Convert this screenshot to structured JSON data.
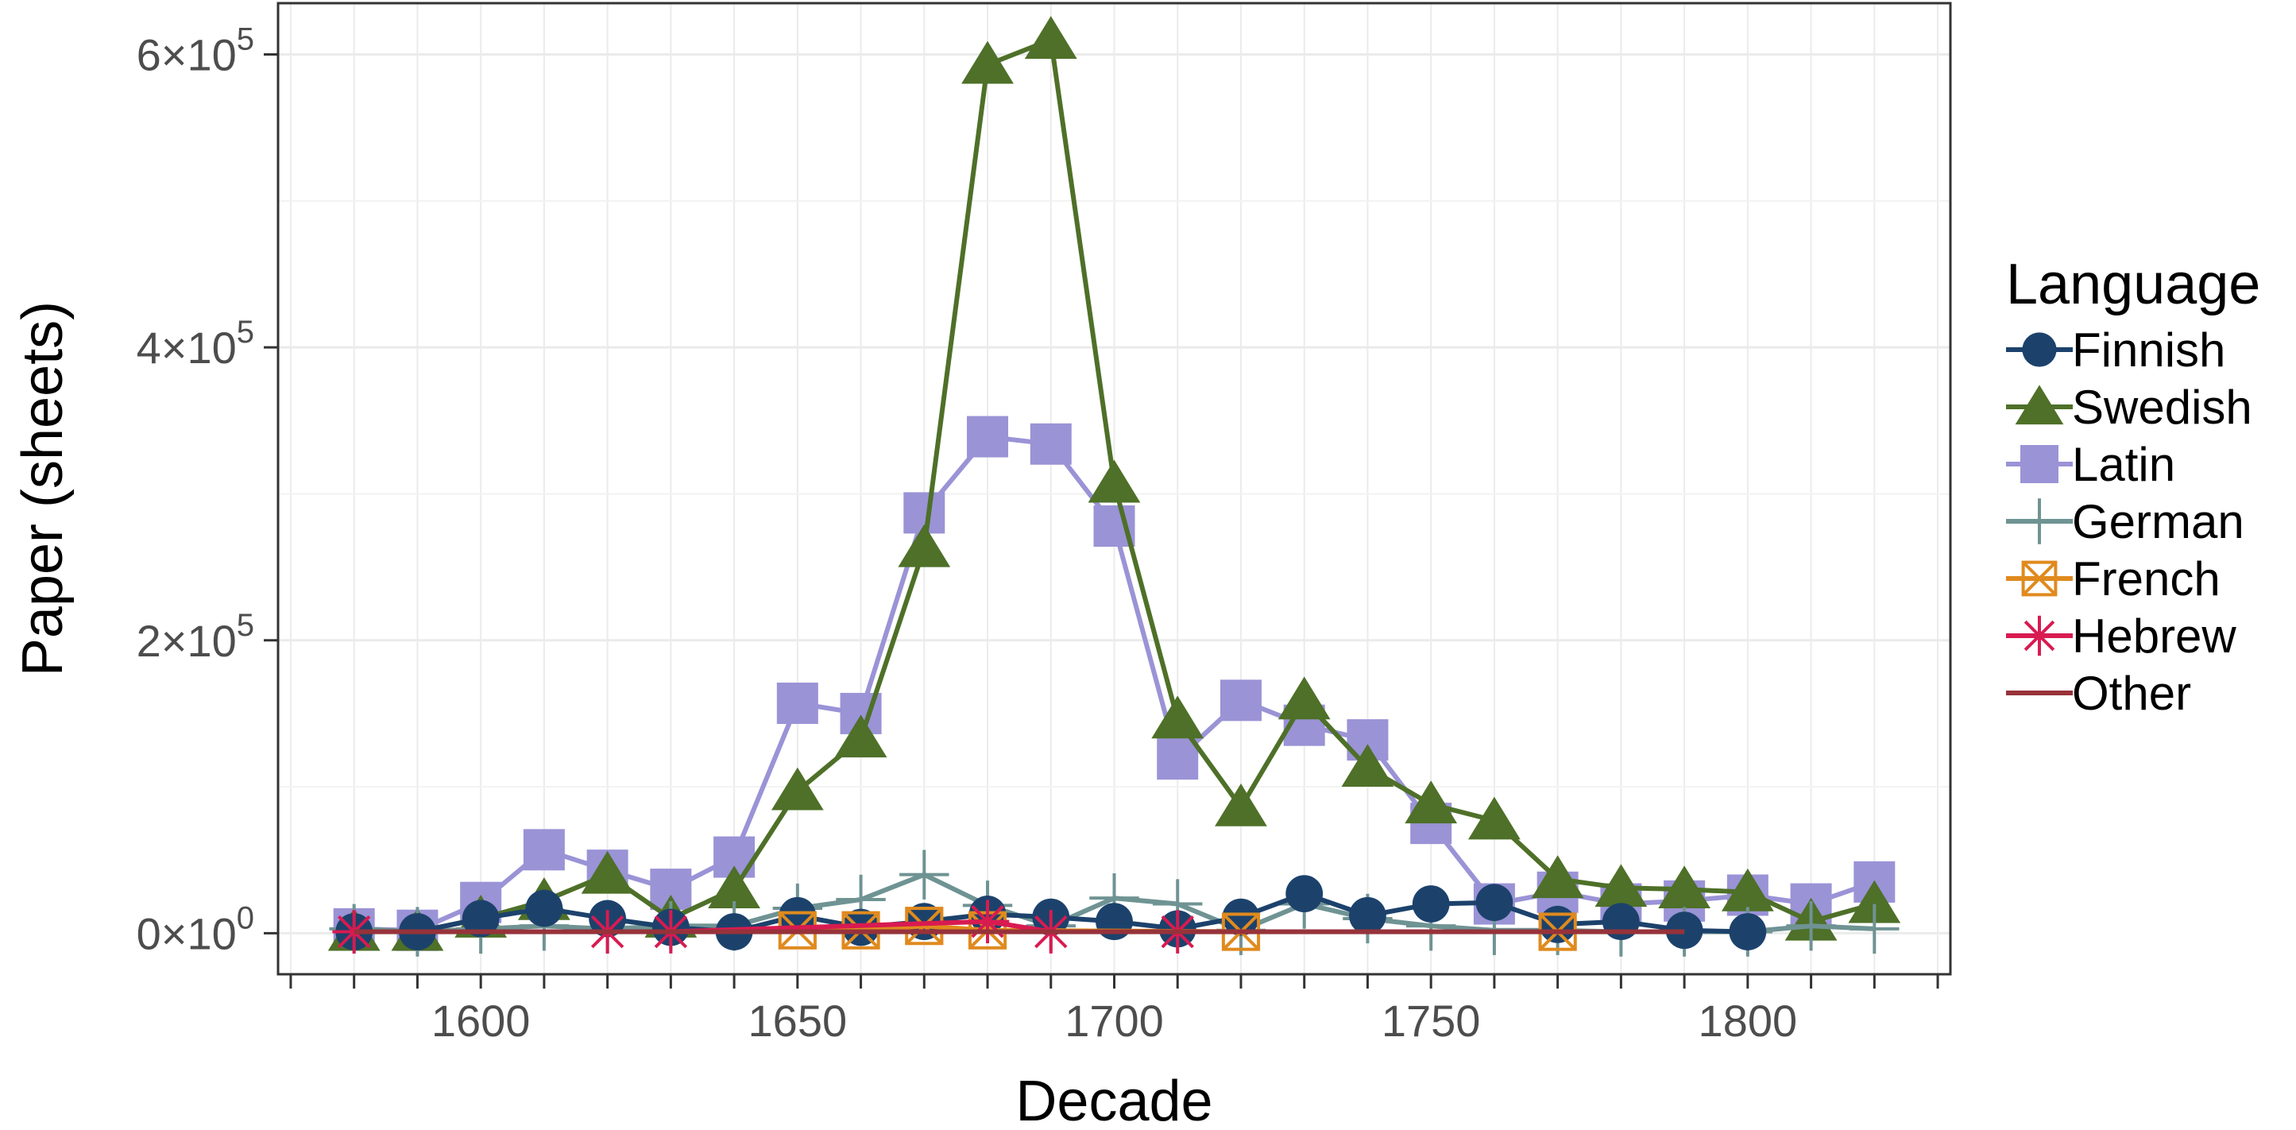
{
  "chart_data": {
    "type": "line",
    "title": "",
    "xlabel": "Decade",
    "ylabel": "Paper (sheets)",
    "xlim": [
      1568,
      1832
    ],
    "ylim": [
      -28000,
      635000
    ],
    "x_ticks": [
      1600,
      1650,
      1700,
      1750,
      1800
    ],
    "x_tick_labels": [
      "1600",
      "1650",
      "1700",
      "1750",
      "1800"
    ],
    "x_minor_every": 10,
    "y_ticks": [
      0,
      200000,
      400000,
      600000
    ],
    "y_tick_labels": [
      {
        "mantissa": "0",
        "times": "×",
        "base": "10",
        "exp": "0"
      },
      {
        "mantissa": "2",
        "times": "×",
        "base": "10",
        "exp": "5"
      },
      {
        "mantissa": "4",
        "times": "×",
        "base": "10",
        "exp": "5"
      },
      {
        "mantissa": "6",
        "times": "×",
        "base": "10",
        "exp": "5"
      }
    ],
    "grid": true,
    "legend_title": "Language",
    "legend_position": "right",
    "series": [
      {
        "name": "Latin",
        "color": "#9a93d6",
        "marker": "square",
        "x": [
          1580,
          1590,
          1600,
          1610,
          1620,
          1630,
          1640,
          1650,
          1660,
          1670,
          1680,
          1690,
          1700,
          1710,
          1720,
          1730,
          1740,
          1750,
          1760,
          1770,
          1780,
          1790,
          1800,
          1810,
          1820
        ],
        "y": [
          3000,
          2000,
          21000,
          57000,
          43000,
          30000,
          52000,
          157000,
          150000,
          287000,
          339000,
          334000,
          278000,
          119000,
          159000,
          142000,
          132000,
          75000,
          20000,
          28000,
          20000,
          22000,
          26000,
          20000,
          35000
        ]
      },
      {
        "name": "Swedish",
        "color": "#4e7028",
        "marker": "triangle",
        "x": [
          1580,
          1590,
          1600,
          1610,
          1620,
          1630,
          1640,
          1650,
          1660,
          1670,
          1680,
          1690,
          1700,
          1710,
          1720,
          1730,
          1740,
          1750,
          1760,
          1770,
          1780,
          1790,
          1800,
          1810,
          1820
        ],
        "y": [
          1000,
          1000,
          10000,
          22000,
          40000,
          10000,
          30000,
          97000,
          133000,
          263000,
          593000,
          610000,
          307000,
          146000,
          86000,
          159000,
          113000,
          88000,
          77000,
          37000,
          31000,
          30000,
          28000,
          8000,
          20000
        ]
      },
      {
        "name": "German",
        "color": "#6f9393",
        "marker": "plus",
        "x": [
          1580,
          1590,
          1600,
          1610,
          1620,
          1630,
          1640,
          1650,
          1660,
          1670,
          1680,
          1690,
          1700,
          1710,
          1720,
          1730,
          1740,
          1750,
          1760,
          1770,
          1780,
          1790,
          1800,
          1810,
          1820
        ],
        "y": [
          3000,
          1000,
          3000,
          5000,
          3000,
          5000,
          5000,
          17000,
          23000,
          40000,
          19000,
          5000,
          24000,
          20000,
          2000,
          20000,
          10000,
          5000,
          2000,
          2000,
          1000,
          1000,
          1000,
          5000,
          3000
        ]
      },
      {
        "name": "Finnish",
        "color": "#1c426c",
        "marker": "circle",
        "x": [
          1580,
          1590,
          1600,
          1610,
          1620,
          1630,
          1640,
          1650,
          1660,
          1670,
          1680,
          1690,
          1700,
          1710,
          1720,
          1730,
          1740,
          1750,
          1760,
          1770,
          1780,
          1790,
          1800
        ],
        "y": [
          1000,
          1000,
          10000,
          17000,
          10000,
          4000,
          1000,
          12000,
          4000,
          8000,
          13000,
          11000,
          8000,
          3000,
          11000,
          27000,
          12000,
          20000,
          21000,
          6000,
          8000,
          2000,
          1000
        ]
      },
      {
        "name": "French",
        "color": "#e08a1e",
        "marker": "squarex",
        "x": [
          1650,
          1660,
          1670,
          1680,
          1720,
          1770
        ],
        "y": [
          2000,
          2000,
          5000,
          2000,
          1000,
          1000
        ]
      },
      {
        "name": "Hebrew",
        "color": "#d81b51",
        "marker": "star",
        "x": [
          1580,
          1620,
          1630,
          1680,
          1690,
          1710
        ],
        "y": [
          1000,
          1000,
          1000,
          8000,
          1000,
          1000
        ]
      },
      {
        "name": "Other",
        "color": "#97323a",
        "marker": "none",
        "x": [
          1580,
          1600,
          1620,
          1640,
          1660,
          1680,
          1700,
          1720,
          1740,
          1760,
          1780,
          1790
        ],
        "y": [
          1000,
          1000,
          1000,
          1000,
          1000,
          1000,
          1000,
          1000,
          1000,
          1000,
          1000,
          1000
        ]
      }
    ],
    "legend_order": [
      "Finnish",
      "Swedish",
      "Latin",
      "German",
      "French",
      "Hebrew",
      "Other"
    ]
  }
}
